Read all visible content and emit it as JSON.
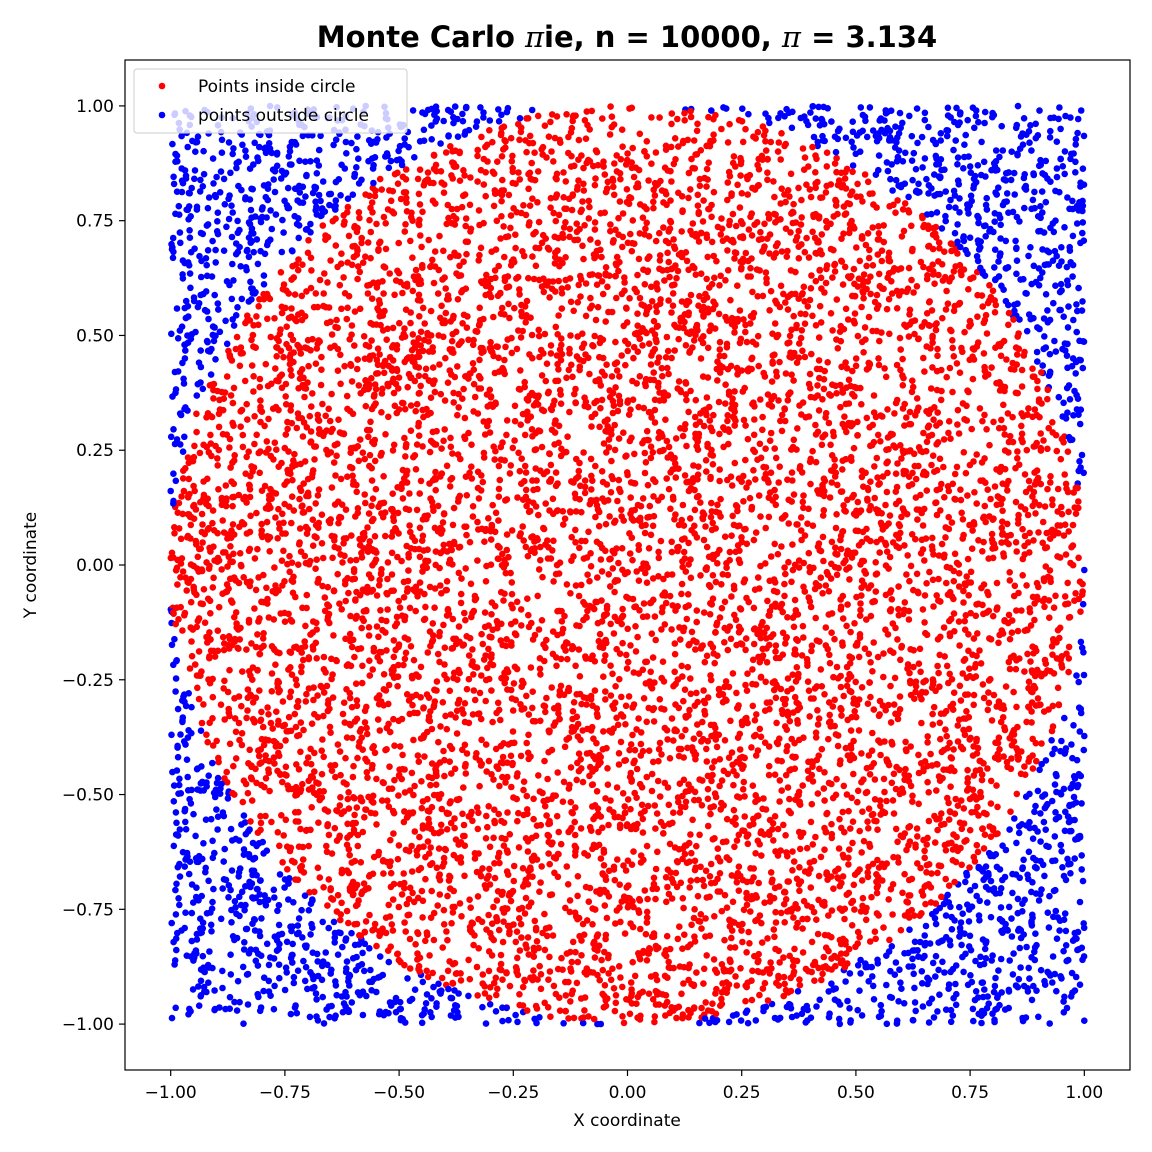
{
  "chart_data": {
    "type": "scatter",
    "title_parts": [
      "Monte Carlo ",
      "π",
      "ie, n = 10000, ",
      "π",
      " = 3.134"
    ],
    "xlabel": "X coordinate",
    "ylabel": "Y coordinate",
    "xlim": [
      -1.1,
      1.1
    ],
    "ylim": [
      -1.1,
      1.1
    ],
    "xticks": [
      -1.0,
      -0.75,
      -0.5,
      -0.25,
      0.0,
      0.25,
      0.5,
      0.75,
      1.0
    ],
    "yticks": [
      -1.0,
      -0.75,
      -0.5,
      -0.25,
      0.0,
      0.25,
      0.5,
      0.75,
      1.0
    ],
    "xtick_labels": [
      "−1.00",
      "−0.75",
      "−0.50",
      "−0.25",
      "0.00",
      "0.25",
      "0.50",
      "0.75",
      "1.00"
    ],
    "ytick_labels": [
      "−1.00",
      "−0.75",
      "−0.50",
      "−0.25",
      "0.00",
      "0.25",
      "0.50",
      "0.75",
      "1.00"
    ],
    "grid": false,
    "legend_position": "top-left",
    "n": 10000,
    "series": [
      {
        "name": "Points inside circle",
        "color": "#ff0000",
        "rule": "x^2 + y^2 <= 1"
      },
      {
        "name": "points outside circle",
        "color": "#0000ff",
        "rule": "x^2 + y^2 > 1"
      }
    ]
  }
}
